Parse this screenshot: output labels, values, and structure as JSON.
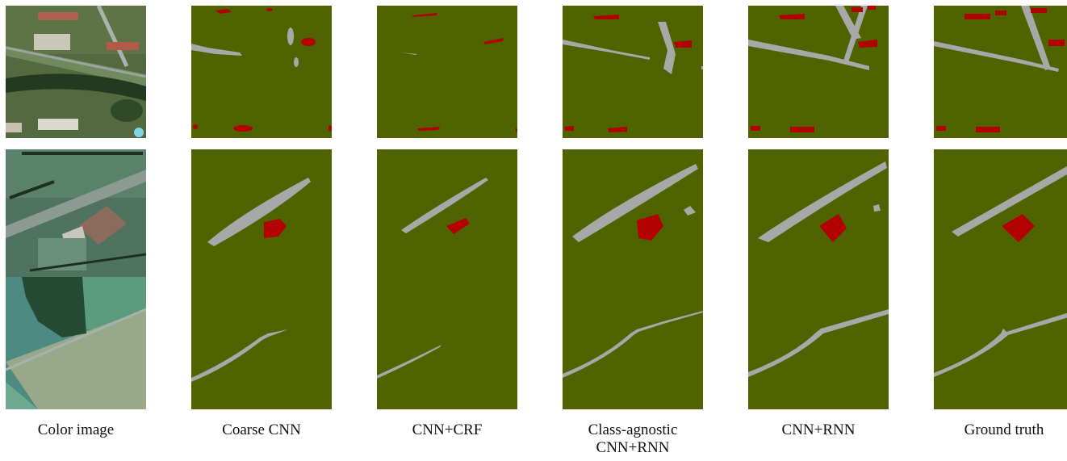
{
  "figure": {
    "columns": [
      {
        "key": "color",
        "label": "Color image",
        "label_lines": [
          "Color image"
        ]
      },
      {
        "key": "coarse",
        "label": "Coarse CNN",
        "label_lines": [
          "Coarse CNN"
        ]
      },
      {
        "key": "crf",
        "label": "CNN+CRF",
        "label_lines": [
          "CNN+CRF"
        ]
      },
      {
        "key": "agnostic",
        "label": "Class-agnostic CNN+RNN",
        "label_lines": [
          "Class-agnostic",
          "CNN+RNN"
        ]
      },
      {
        "key": "rnn",
        "label": "CNN+RNN",
        "label_lines": [
          "CNN+RNN"
        ]
      },
      {
        "key": "gt",
        "label": "Ground truth",
        "label_lines": [
          "Ground truth"
        ]
      }
    ],
    "rows": 3,
    "colors": {
      "background_class": "#4f6400",
      "road_class": "#a8a8a8",
      "building_class": "#b30000"
    }
  }
}
